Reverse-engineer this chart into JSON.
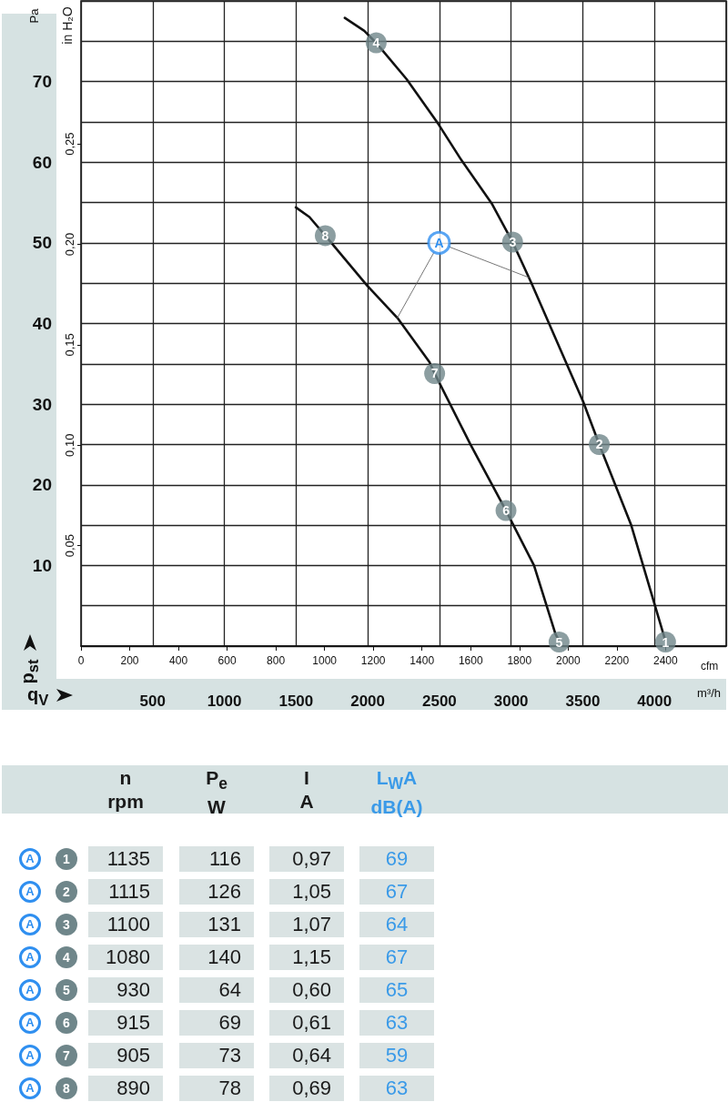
{
  "chart_data": {
    "type": "line",
    "ylabel": "Pa",
    "y2label": "in H₂O",
    "xlabel": "cfm",
    "x2label": "m³/h",
    "annotations": [
      "p$_{st}$",
      "q$_{V}$",
      {
        "text": "1",
        "x": 2400,
        "y": 0.5
      },
      {
        "text": "2",
        "x": 2128,
        "y": 25.0
      },
      {
        "text": "3",
        "x": 1772,
        "y": 50.1
      },
      {
        "text": "4",
        "x": 1212,
        "y": 74.8
      },
      {
        "text": "5",
        "x": 1963,
        "y": 0.5
      },
      {
        "text": "6",
        "x": 1745,
        "y": 16.8
      },
      {
        "text": "7",
        "x": 1452,
        "y": 33.8
      },
      {
        "text": "8",
        "x": 1003,
        "y": 50.9
      },
      {
        "text": "A",
        "x": 1470,
        "y": 50.0
      },
      "n\nrpm",
      "P$_{e}$\nW",
      "I\nA",
      "L$_{W}$A\ndB(A)",
      "A",
      "1",
      "1135",
      "116",
      "0,97",
      "69",
      "A",
      "2",
      "1115",
      "126",
      "1,05",
      "67",
      "A",
      "3",
      "1100",
      "131",
      "1,07",
      "64",
      "A",
      "4",
      "1080",
      "140",
      "1,15",
      "67",
      "A",
      "5",
      "930",
      "64",
      "0,60",
      "65",
      "A",
      "6",
      "915",
      "69",
      "0,61",
      "63",
      "A",
      "7",
      "905",
      "73",
      "0,64",
      "59",
      "A",
      "8",
      "890",
      "78",
      "0,69",
      "63"
    ],
    "xlim": [
      0,
      2649
    ],
    "xticks": [
      0,
      200,
      400,
      600,
      800,
      1000,
      1200,
      1400,
      1600,
      1800,
      2000,
      2200,
      2400
    ],
    "x2lim": [
      0,
      4500
    ],
    "x2ticks": [
      500,
      1000,
      1500,
      2000,
      2500,
      3000,
      3500,
      4000
    ],
    "ylim": [
      0,
      80
    ],
    "yticks": [
      {
        "value": 0,
        "label": null
      },
      {
        "value": 5,
        "label": null
      },
      10,
      {
        "value": 15,
        "label": null
      },
      20,
      {
        "value": 25,
        "label": null
      },
      30,
      {
        "value": 35,
        "label": null
      },
      40,
      {
        "value": 45,
        "label": null
      },
      50,
      {
        "value": 55,
        "label": null
      },
      60,
      {
        "value": 65,
        "label": null
      },
      70,
      {
        "value": 75,
        "label": null
      },
      {
        "value": 80,
        "label": null
      }
    ],
    "y2lim": [
      0,
      0.3212
    ],
    "y2ticks": [
      {
        "value": 0.05,
        "label": "0,05"
      },
      {
        "value": 0.1,
        "label": "0,10"
      },
      {
        "value": 0.15,
        "label": "0,15"
      },
      {
        "value": 0.2,
        "label": "0,20"
      },
      {
        "value": 0.25,
        "label": "0,25"
      }
    ],
    "grid": true,
    "series": [
      {
        "type": "line",
        "color": "#111111",
        "x": [
          1083,
          1163,
          1212,
          1337,
          1468,
          1561,
          1686,
          1772,
          1848,
          1991,
          2062,
          2128,
          2259,
          2356,
          2398
        ],
        "values": [
          77.9,
          76.3,
          74.8,
          70.3,
          64.7,
          60.3,
          54.9,
          50.1,
          45.1,
          35.2,
          30.3,
          25.0,
          15.0,
          5.1,
          0.8
        ]
      },
      {
        "type": "line",
        "color": "#111111",
        "x": [
          882,
          938,
          1003,
          1175,
          1299,
          1431,
          1452,
          1599,
          1745,
          1860,
          1948,
          1960
        ],
        "values": [
          54.4,
          53.2,
          50.9,
          44.7,
          40.7,
          35.2,
          33.8,
          25.0,
          16.8,
          10.0,
          1.5,
          0.8
        ]
      },
      {
        "type": "line",
        "color": "#666666",
        "x": [
          1299,
          1449
        ],
        "values": [
          40.7,
          48.8
        ]
      },
      {
        "type": "line",
        "color": "#666666",
        "x": [
          1512,
          1839
        ],
        "values": [
          49.5,
          45.7
        ]
      },
      {
        "type": "scatter",
        "marker": "circle",
        "color": "#6f868a",
        "x": [
          2400,
          2128,
          1772,
          1212,
          1963,
          1745,
          1452,
          1003
        ],
        "values": [
          0.5,
          25.0,
          50.1,
          74.8,
          0.5,
          16.8,
          33.8,
          50.9
        ]
      },
      {
        "type": "scatter",
        "marker": "circle",
        "color": "#2f8ff0",
        "x": [
          1470
        ],
        "values": [
          50.0
        ]
      }
    ]
  }
}
